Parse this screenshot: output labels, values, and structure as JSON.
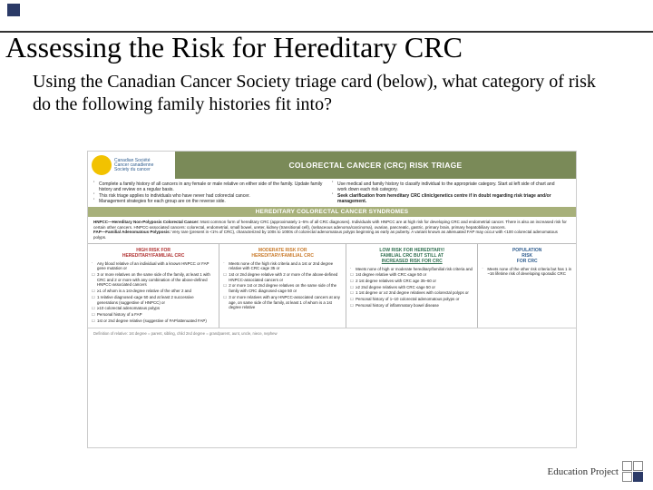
{
  "colors": {
    "accent_square": "#2b3a67",
    "rule": "#333333",
    "olive_bar": "#7a8a58",
    "olive_light": "#a7b07a",
    "high": "#b03030",
    "moderate": "#c97a2a",
    "low": "#2f6f4f",
    "population": "#2f5d8f",
    "logo_yellow": "#f2c200"
  },
  "slide": {
    "title": "Assessing the Risk for Hereditary CRC",
    "subtitle": "Using the Canadian Cancer Society triage card (below), what category of risk do the following family histories fit into?",
    "footer_brand": "Education Project"
  },
  "card": {
    "org_lines": [
      "Canadian Société",
      "Cancer canadienne",
      "Society du cancer"
    ],
    "banner": "COLORECTAL CANCER (CRC) RISK TRIAGE",
    "instructions_left": [
      "Complete a family history of all cancers in any female or male relative on either side of the family. Update family history and review on a regular basis.",
      "This risk triage applies to individuals who have never had colorectal cancer.",
      "Management strategies for each group are on the reverse side."
    ],
    "instructions_right": [
      "Use medical and family history to classify individual to the appropriate category. Start at left side of chart and work down each risk category.",
      "Seek clarification from hereditary CRC clinic/genetics centre if in doubt regarding risk triage and/or management."
    ],
    "section_header": "HEREDITARY COLORECTAL CANCER SYNDROMES",
    "syndromes": {
      "hnpcc_label": "HNPCC—Hereditary Non-Polyposis Colorectal Cancer:",
      "hnpcc_text": " Most common form of hereditary CRC (approximately 1–5% of all CRC diagnoses). Individuals with HNPCC are at high risk for developing CRC and endometrial cancer. There is also an increased risk for certain other cancers. HNPCC-associated cancers: colorectal, endometrial, small bowel, ureter, kidney (transitional cell), (sebaceous adenoma/carcinoma), ovarian, pancreatic, gastric, primary brain, primary hepatobiliary cancers.",
      "fap_label": "FAP—Familial Adenomatous Polyposis:",
      "fap_text": " Very rare (present in <1% of CRC), characterized by 100s to 1000s of colorectal adenomatous polyps beginning as early as puberty. A variant known as attenuated FAP may occur with <100 colorectal adenomatous polyps."
    },
    "risk_columns": [
      {
        "head_color": "line-high",
        "head_ln1": "HIGH RISK FOR",
        "head_ln2": "HEREDITARY/FAMILIAL CRC",
        "lead": "Any blood relative of an individual with a known HNPCC or FAP gene mutation or",
        "items": [
          "3 or more relatives on the same side of the family, at least 1 with CRC and 2 or more with any combination of the above-defined HNPCC-associated cancers",
          "≥1 of whom is a 1st-degree relative of the other 2 and",
          "1 relative diagnosed ≤age 50 and at least 2 successive generations (suggestive of HNPCC) or",
          "≥10 colorectal adenomatous polyps",
          "Personal history of a FAP",
          "1st or 2nd degree relative (suggestive of FAP/attenuated FAP)"
        ]
      },
      {
        "head_color": "line-mod",
        "head_ln1": "MODERATE RISK FOR",
        "head_ln2": "HEREDITARY/FAMILIAL CRC",
        "lead": "Meets none of the high risk criteria and a 1st or 2nd degree relative with CRC ≤age 35 or",
        "items": [
          "1st or 2nd degree relative with 2 or more of the above-defined HNPCC-associated cancers or",
          "2 or more 1st or 2nd degree relatives on the same side of the family with CRC diagnosed ≤age 50 or",
          "3 or more relatives with any HNPCC-associated cancers at any age, on same side of the family, at least 1 of whom is a 1st degree relative"
        ]
      },
      {
        "head_color": "line-low",
        "head_ln1": "LOW RISK FOR HEREDITARY/",
        "head_ln2": "FAMILIAL CRC BUT STILL AT",
        "head_ln3": "INCREASED RISK FOR CRC",
        "lead": "Meets none of high or moderate hereditary/familial risk criteria and",
        "items": [
          "1st degree relative with CRC ≤age 50 or",
          "2 1st degree relatives with CRC age 35–60 or",
          "≥2 2nd degree relatives with CRC ≤age 50 or",
          "1 1st degree or ≥2 2nd degree relatives with colorectal polyps or",
          "Personal history of 1–10 colorectal adenomatous polyps or",
          "Personal history of inflammatory bowel disease"
        ]
      },
      {
        "head_color": "line-pop",
        "head_ln1": "POPULATION",
        "head_ln2": "RISK",
        "head_ln3": "FOR CRC",
        "lead": "Meets none of the other risk criteria but has 1 in ~16 lifetime risk of developing sporadic CRC",
        "items": []
      }
    ],
    "footnote": "Definition of relative: 1st degree = parent, sibling, child    2nd degree = grandparent, aunt, uncle, niece, nephew"
  }
}
